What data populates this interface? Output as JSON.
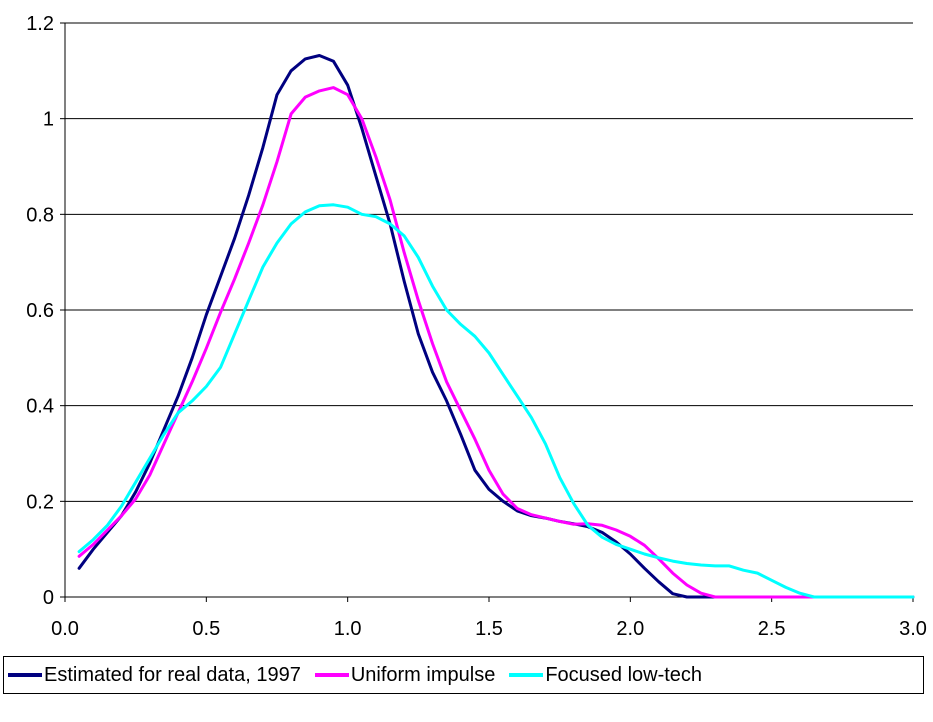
{
  "chart_data": {
    "type": "line",
    "title": "",
    "xlabel": "",
    "ylabel": "",
    "xlim": [
      0,
      3
    ],
    "ylim": [
      0,
      1.2
    ],
    "x_ticks": [
      "0.0",
      "0.5",
      "1.0",
      "1.5",
      "2.0",
      "2.5",
      "3.0"
    ],
    "y_ticks": [
      "0",
      "0.2",
      "0.4",
      "0.6",
      "0.8",
      "1",
      "1.2"
    ],
    "grid": "horizontal",
    "legend_position": "bottom",
    "series": [
      {
        "name": "Estimated for real data, 1997",
        "color": "#000080",
        "points": [
          [
            0.05,
            0.06
          ],
          [
            0.1,
            0.1
          ],
          [
            0.15,
            0.135
          ],
          [
            0.2,
            0.17
          ],
          [
            0.25,
            0.22
          ],
          [
            0.3,
            0.28
          ],
          [
            0.35,
            0.35
          ],
          [
            0.4,
            0.42
          ],
          [
            0.45,
            0.5
          ],
          [
            0.5,
            0.59
          ],
          [
            0.55,
            0.67
          ],
          [
            0.6,
            0.75
          ],
          [
            0.65,
            0.84
          ],
          [
            0.7,
            0.94
          ],
          [
            0.75,
            1.05
          ],
          [
            0.8,
            1.1
          ],
          [
            0.85,
            1.125
          ],
          [
            0.9,
            1.132
          ],
          [
            0.95,
            1.12
          ],
          [
            1.0,
            1.07
          ],
          [
            1.05,
            0.98
          ],
          [
            1.1,
            0.88
          ],
          [
            1.15,
            0.78
          ],
          [
            1.2,
            0.66
          ],
          [
            1.25,
            0.55
          ],
          [
            1.3,
            0.47
          ],
          [
            1.35,
            0.41
          ],
          [
            1.4,
            0.34
          ],
          [
            1.45,
            0.265
          ],
          [
            1.5,
            0.225
          ],
          [
            1.55,
            0.2
          ],
          [
            1.6,
            0.18
          ],
          [
            1.65,
            0.17
          ],
          [
            1.7,
            0.165
          ],
          [
            1.75,
            0.158
          ],
          [
            1.8,
            0.153
          ],
          [
            1.85,
            0.147
          ],
          [
            1.9,
            0.135
          ],
          [
            1.95,
            0.115
          ],
          [
            2.0,
            0.09
          ],
          [
            2.05,
            0.06
          ],
          [
            2.1,
            0.032
          ],
          [
            2.15,
            0.007
          ],
          [
            2.2,
            0.0
          ],
          [
            2.3,
            0.0
          ],
          [
            3.0,
            0.0
          ]
        ]
      },
      {
        "name": "Uniform impulse",
        "color": "#FF00FF",
        "points": [
          [
            0.05,
            0.085
          ],
          [
            0.1,
            0.11
          ],
          [
            0.15,
            0.14
          ],
          [
            0.2,
            0.17
          ],
          [
            0.25,
            0.205
          ],
          [
            0.3,
            0.255
          ],
          [
            0.35,
            0.32
          ],
          [
            0.4,
            0.385
          ],
          [
            0.45,
            0.45
          ],
          [
            0.5,
            0.52
          ],
          [
            0.55,
            0.595
          ],
          [
            0.6,
            0.665
          ],
          [
            0.65,
            0.74
          ],
          [
            0.7,
            0.82
          ],
          [
            0.75,
            0.91
          ],
          [
            0.8,
            1.01
          ],
          [
            0.85,
            1.045
          ],
          [
            0.9,
            1.058
          ],
          [
            0.95,
            1.065
          ],
          [
            1.0,
            1.05
          ],
          [
            1.05,
            1.0
          ],
          [
            1.1,
            0.92
          ],
          [
            1.15,
            0.83
          ],
          [
            1.2,
            0.72
          ],
          [
            1.25,
            0.62
          ],
          [
            1.3,
            0.53
          ],
          [
            1.35,
            0.45
          ],
          [
            1.4,
            0.39
          ],
          [
            1.45,
            0.33
          ],
          [
            1.5,
            0.265
          ],
          [
            1.55,
            0.215
          ],
          [
            1.6,
            0.185
          ],
          [
            1.65,
            0.172
          ],
          [
            1.7,
            0.165
          ],
          [
            1.75,
            0.158
          ],
          [
            1.8,
            0.152
          ],
          [
            1.85,
            0.153
          ],
          [
            1.9,
            0.15
          ],
          [
            1.95,
            0.14
          ],
          [
            2.0,
            0.127
          ],
          [
            2.05,
            0.108
          ],
          [
            2.1,
            0.08
          ],
          [
            2.15,
            0.05
          ],
          [
            2.2,
            0.025
          ],
          [
            2.25,
            0.008
          ],
          [
            2.3,
            0.0
          ],
          [
            2.4,
            0.0
          ],
          [
            3.0,
            0.0
          ]
        ]
      },
      {
        "name": "Focused low-tech",
        "color": "#00FFFF",
        "points": [
          [
            0.05,
            0.095
          ],
          [
            0.1,
            0.12
          ],
          [
            0.15,
            0.15
          ],
          [
            0.2,
            0.19
          ],
          [
            0.25,
            0.24
          ],
          [
            0.3,
            0.29
          ],
          [
            0.35,
            0.34
          ],
          [
            0.4,
            0.385
          ],
          [
            0.45,
            0.41
          ],
          [
            0.5,
            0.44
          ],
          [
            0.55,
            0.48
          ],
          [
            0.6,
            0.55
          ],
          [
            0.65,
            0.62
          ],
          [
            0.7,
            0.69
          ],
          [
            0.75,
            0.74
          ],
          [
            0.8,
            0.78
          ],
          [
            0.85,
            0.805
          ],
          [
            0.9,
            0.818
          ],
          [
            0.95,
            0.82
          ],
          [
            1.0,
            0.815
          ],
          [
            1.05,
            0.8
          ],
          [
            1.1,
            0.795
          ],
          [
            1.15,
            0.78
          ],
          [
            1.2,
            0.755
          ],
          [
            1.25,
            0.71
          ],
          [
            1.3,
            0.65
          ],
          [
            1.35,
            0.6
          ],
          [
            1.4,
            0.57
          ],
          [
            1.45,
            0.545
          ],
          [
            1.5,
            0.51
          ],
          [
            1.55,
            0.465
          ],
          [
            1.6,
            0.42
          ],
          [
            1.65,
            0.375
          ],
          [
            1.7,
            0.32
          ],
          [
            1.75,
            0.25
          ],
          [
            1.8,
            0.195
          ],
          [
            1.85,
            0.15
          ],
          [
            1.9,
            0.125
          ],
          [
            1.95,
            0.11
          ],
          [
            2.0,
            0.1
          ],
          [
            2.05,
            0.09
          ],
          [
            2.1,
            0.082
          ],
          [
            2.15,
            0.075
          ],
          [
            2.2,
            0.07
          ],
          [
            2.25,
            0.067
          ],
          [
            2.3,
            0.065
          ],
          [
            2.35,
            0.065
          ],
          [
            2.4,
            0.056
          ],
          [
            2.45,
            0.05
          ],
          [
            2.5,
            0.035
          ],
          [
            2.55,
            0.02
          ],
          [
            2.6,
            0.008
          ],
          [
            2.65,
            0.0
          ],
          [
            2.7,
            0.0
          ],
          [
            3.0,
            0.0
          ]
        ]
      }
    ]
  }
}
